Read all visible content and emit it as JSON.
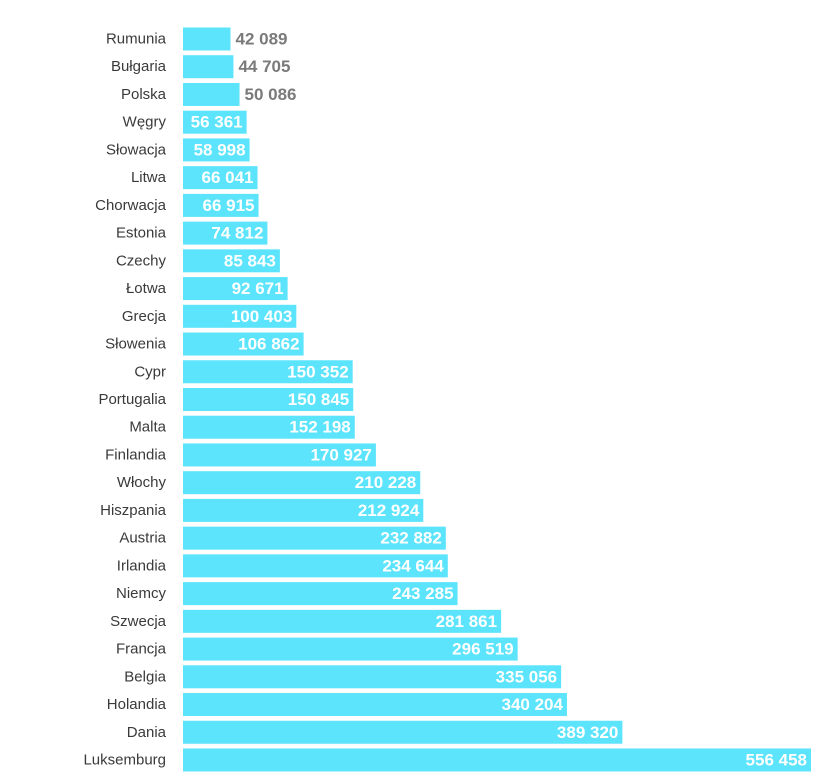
{
  "chart_data": {
    "type": "bar",
    "orientation": "horizontal",
    "bar_color": "#5be4fb",
    "label_inside_color": "#ffffff",
    "label_outside_color": "#7a7a7a",
    "categories": [
      "Rumunia",
      "Bułgaria",
      "Polska",
      "Węgry",
      "Słowacja",
      "Litwa",
      "Chorwacja",
      "Estonia",
      "Czechy",
      "Łotwa",
      "Grecja",
      "Słowenia",
      "Cypr",
      "Portugalia",
      "Malta",
      "Finlandia",
      "Włochy",
      "Hiszpania",
      "Austria",
      "Irlandia",
      "Niemcy",
      "Szwecja",
      "Francja",
      "Belgia",
      "Holandia",
      "Dania",
      "Luksemburg"
    ],
    "values": [
      42089,
      44705,
      50086,
      56361,
      58998,
      66041,
      66915,
      74812,
      85843,
      92671,
      100403,
      106862,
      150352,
      150845,
      152198,
      170927,
      210228,
      212924,
      232882,
      234644,
      243285,
      281861,
      296519,
      335056,
      340204,
      389320,
      556458
    ],
    "value_labels": [
      "42 089",
      "44 705",
      "50 086",
      "56 361",
      "58 998",
      "66 041",
      "66 915",
      "74 812",
      "85 843",
      "92 671",
      "100 403",
      "106 862",
      "150 352",
      "150 845",
      "152 198",
      "170 927",
      "210 228",
      "212 924",
      "232 882",
      "234 644",
      "243 285",
      "281 861",
      "296 519",
      "335 056",
      "340 204",
      "389 320",
      "556 458"
    ]
  }
}
